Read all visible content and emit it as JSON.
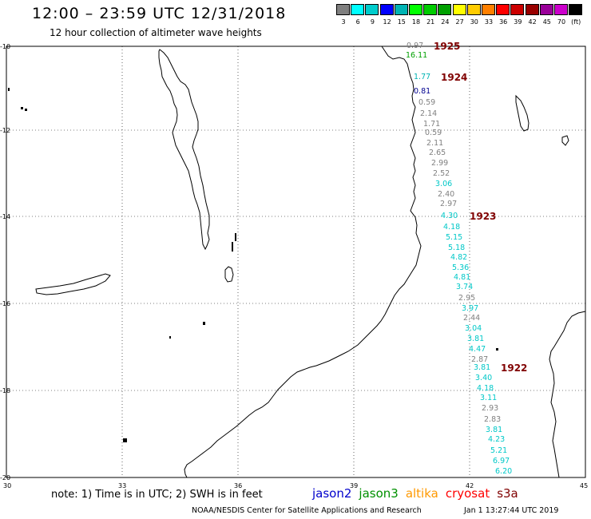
{
  "header": {
    "title": "12:00 – 23:59 UTC 12/31/2018",
    "subtitle": "12 hour collection of altimeter wave heights"
  },
  "legend": {
    "colors": [
      "#808080",
      "#00ffff",
      "#00cccc",
      "#0000ff",
      "#00b4b4",
      "#00ff00",
      "#00cc00",
      "#00a000",
      "#ffff00",
      "#ffcc00",
      "#ff8000",
      "#ff0000",
      "#cc0000",
      "#990000",
      "#990099",
      "#cc00cc",
      "#000000"
    ],
    "labels": [
      "3",
      "6",
      "9",
      "12",
      "15",
      "18",
      "21",
      "24",
      "27",
      "30",
      "33",
      "36",
      "39",
      "42",
      "45",
      "70",
      "(ft)"
    ]
  },
  "map": {
    "lat_labels": [
      "-10",
      "-12",
      "-14",
      "-16",
      "-18",
      "-20"
    ],
    "lon_labels": [
      "30",
      "33",
      "36",
      "39",
      "42",
      "45"
    ]
  },
  "pass_labels": [
    "1925",
    "1924",
    "1923",
    "1922"
  ],
  "wave_heights": [
    {
      "v": "0.97",
      "c": "#808080"
    },
    {
      "v": "16.11",
      "c": "#00a000"
    },
    {
      "v": "1.77",
      "c": "#00b4b4"
    },
    {
      "v": "0.81",
      "c": "#000090"
    },
    {
      "v": "0.59",
      "c": "#808080"
    },
    {
      "v": "2.14",
      "c": "#808080"
    },
    {
      "v": "1.71",
      "c": "#808080"
    },
    {
      "v": "0.59",
      "c": "#808080"
    },
    {
      "v": "2.11",
      "c": "#808080"
    },
    {
      "v": "2.65",
      "c": "#808080"
    },
    {
      "v": "2.99",
      "c": "#808080"
    },
    {
      "v": "2.52",
      "c": "#808080"
    },
    {
      "v": "3.06",
      "c": "#00c8c8"
    },
    {
      "v": "2.40",
      "c": "#808080"
    },
    {
      "v": "2.97",
      "c": "#808080"
    },
    {
      "v": "4.30",
      "c": "#00c8c8"
    },
    {
      "v": "4.18",
      "c": "#00c8c8"
    },
    {
      "v": "5.15",
      "c": "#00c8c8"
    },
    {
      "v": "5.18",
      "c": "#00c8c8"
    },
    {
      "v": "4.82",
      "c": "#00c8c8"
    },
    {
      "v": "5.36",
      "c": "#00c8c8"
    },
    {
      "v": "4.81",
      "c": "#00c8c8"
    },
    {
      "v": "3.74",
      "c": "#00c8c8"
    },
    {
      "v": "2.95",
      "c": "#808080"
    },
    {
      "v": "3.97",
      "c": "#00c8c8"
    },
    {
      "v": "2.44",
      "c": "#808080"
    },
    {
      "v": "3.04",
      "c": "#00c8c8"
    },
    {
      "v": "3.81",
      "c": "#00c8c8"
    },
    {
      "v": "4.47",
      "c": "#00c8c8"
    },
    {
      "v": "2.87",
      "c": "#808080"
    },
    {
      "v": "3.81",
      "c": "#00c8c8"
    },
    {
      "v": "3.40",
      "c": "#00c8c8"
    },
    {
      "v": "4.18",
      "c": "#00c8c8"
    },
    {
      "v": "3.11",
      "c": "#00c8c8"
    },
    {
      "v": "2.93",
      "c": "#808080"
    },
    {
      "v": "2.83",
      "c": "#808080"
    },
    {
      "v": "3.81",
      "c": "#00c8c8"
    },
    {
      "v": "4.23",
      "c": "#00c8c8"
    },
    {
      "v": "5.21",
      "c": "#00c8c8"
    },
    {
      "v": "6.97",
      "c": "#00c8c8"
    },
    {
      "v": "6.20",
      "c": "#00c8c8"
    }
  ],
  "note": "note: 1) Time is in UTC; 2) SWH is in feet",
  "satellites": [
    {
      "name": "jason2",
      "color": "#0000cc"
    },
    {
      "name": "jason3",
      "color": "#009000"
    },
    {
      "name": "altika",
      "color": "#ff9900"
    },
    {
      "name": "cryosat",
      "color": "#ff0000"
    },
    {
      "name": "s3a",
      "color": "#800000"
    }
  ],
  "footer": {
    "center": "NOAA/NESDIS Center for Satellite Applications and Research",
    "date": "Jan  1 13:27:44 UTC 2019"
  }
}
